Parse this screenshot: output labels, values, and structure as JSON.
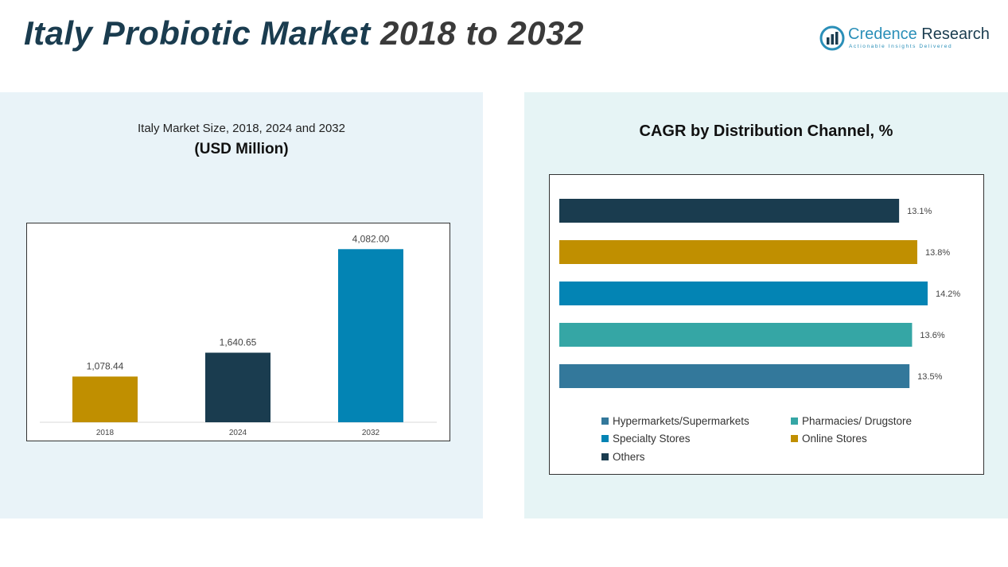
{
  "header": {
    "title_part1": "Italy Probiotic Market",
    "title_part2": "2018 to 2032"
  },
  "logo": {
    "name_part1": "Credence",
    "name_part2": "Research",
    "tagline": "Actionable Insights Delivered"
  },
  "left_panel": {
    "title": "Italy Market Size, 2018, 2024 and 2032",
    "subtitle": "(USD Million)"
  },
  "right_panel": {
    "title": "CAGR by Distribution Channel, %"
  },
  "colors": {
    "gold": "#c08f00",
    "navy": "#1a3c4f",
    "blue": "#0384b4",
    "teal": "#35a6a5",
    "steel": "#33789b"
  },
  "chart_data": [
    {
      "type": "bar",
      "categories": [
        "2018",
        "2024",
        "2032"
      ],
      "values": [
        1078.44,
        1640.65,
        4082.0
      ],
      "value_labels": [
        "1,078.44",
        "1,640.65",
        "4,082.00"
      ],
      "colors": [
        "#c08f00",
        "#1a3c4f",
        "#0384b4"
      ],
      "ylim": [
        0,
        4500
      ],
      "grid": false
    },
    {
      "type": "bar",
      "orientation": "horizontal",
      "categories": [
        "Others",
        "Online Stores",
        "Specialty Stores",
        "Pharmacies/ Drugstore",
        "Hypermarkets/Supermarkets"
      ],
      "values": [
        13.1,
        13.8,
        14.2,
        13.6,
        13.5
      ],
      "value_labels": [
        "13.1%",
        "13.8%",
        "14.2%",
        "13.6%",
        "13.5%"
      ],
      "colors": [
        "#1a3c4f",
        "#c08f00",
        "#0384b4",
        "#35a6a5",
        "#33789b"
      ],
      "xlim": [
        0,
        14.2
      ],
      "grid": false,
      "legend_position": "bottom",
      "legend": [
        {
          "label": "Hypermarkets/Supermarkets",
          "color": "#33789b"
        },
        {
          "label": "Pharmacies/ Drugstore",
          "color": "#35a6a5"
        },
        {
          "label": "Specialty Stores",
          "color": "#0384b4"
        },
        {
          "label": "Online Stores",
          "color": "#c08f00"
        },
        {
          "label": "Others",
          "color": "#1a3c4f"
        }
      ]
    }
  ]
}
